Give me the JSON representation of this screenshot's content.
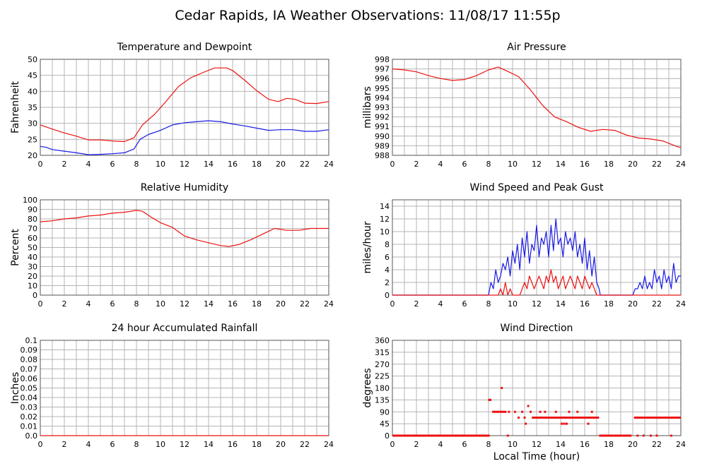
{
  "page_title": "Cedar Rapids, IA Weather Observations: 11/08/17 11:55p",
  "colors": {
    "red": "#ee1111",
    "blue": "#1a1ae6",
    "grid": "#b4b4b4",
    "frame": "#555555"
  },
  "chart_data": [
    {
      "id": "temp",
      "type": "line",
      "title": "Temperature and Dewpoint",
      "xlabel": "",
      "ylabel": "Fahrenheit",
      "xlim": [
        0,
        24
      ],
      "ylim": [
        20,
        50
      ],
      "xticks": [
        0,
        2,
        4,
        6,
        8,
        10,
        12,
        14,
        16,
        18,
        20,
        22,
        24
      ],
      "yticks": [
        20,
        25,
        30,
        35,
        40,
        45,
        50
      ],
      "grid": true,
      "series": [
        {
          "color": "red",
          "x": [
            0,
            1,
            2,
            3,
            4,
            5,
            6,
            7,
            7.8,
            8.5,
            9.5,
            10.5,
            11.5,
            12.5,
            13.5,
            14.5,
            15.5,
            16,
            17,
            18,
            19,
            19.8,
            20.5,
            21.2,
            22,
            23,
            24
          ],
          "y": [
            29.5,
            28.2,
            27,
            26,
            24.8,
            24.8,
            24.5,
            24.3,
            25.5,
            29.5,
            32.8,
            37,
            41.5,
            44.2,
            45.8,
            47.3,
            47.3,
            46.5,
            43.5,
            40.2,
            37.5,
            36.8,
            37.8,
            37.5,
            36.3,
            36.2,
            36.8
          ]
        },
        {
          "color": "blue",
          "x": [
            0,
            0.5,
            1,
            2,
            3,
            4,
            5,
            6,
            7,
            7.8,
            8.3,
            9,
            10,
            11,
            12,
            13,
            14,
            15,
            16,
            17,
            18,
            19,
            20,
            21,
            22,
            23,
            24
          ],
          "y": [
            22.8,
            22.5,
            21.8,
            21.3,
            20.8,
            20.2,
            20.3,
            20.5,
            20.8,
            22,
            25,
            26.5,
            27.8,
            29.5,
            30.2,
            30.5,
            30.8,
            30.5,
            29.8,
            29.2,
            28.5,
            27.8,
            28,
            28,
            27.5,
            27.5,
            28
          ]
        }
      ]
    },
    {
      "id": "pressure",
      "type": "line",
      "title": "Air Pressure",
      "xlabel": "",
      "ylabel": "millibars",
      "xlim": [
        0,
        24
      ],
      "ylim": [
        988,
        998
      ],
      "xticks": [
        0,
        2,
        4,
        6,
        8,
        10,
        12,
        14,
        16,
        18,
        20,
        22,
        24
      ],
      "yticks": [
        988,
        989,
        990,
        991,
        992,
        993,
        994,
        995,
        996,
        997,
        998
      ],
      "grid": true,
      "series": [
        {
          "color": "red",
          "x": [
            0,
            1,
            2,
            3,
            4,
            5,
            6,
            7,
            8,
            8.8,
            9.5,
            10.5,
            11.5,
            12.5,
            13.5,
            14.5,
            15.5,
            16.5,
            17.5,
            18.5,
            19.5,
            20.5,
            21.5,
            22.5,
            23.5,
            24
          ],
          "y": [
            997,
            996.9,
            996.7,
            996.3,
            996,
            995.8,
            995.9,
            996.3,
            996.9,
            997.2,
            996.8,
            996.2,
            994.8,
            993.2,
            992,
            991.5,
            990.9,
            990.5,
            990.7,
            990.6,
            990.1,
            989.8,
            989.7,
            989.5,
            989,
            988.8
          ]
        }
      ]
    },
    {
      "id": "humidity",
      "type": "line",
      "title": "Relative Humidity",
      "xlabel": "",
      "ylabel": "Percent",
      "xlim": [
        0,
        24
      ],
      "ylim": [
        0,
        100
      ],
      "xticks": [
        0,
        2,
        4,
        6,
        8,
        10,
        12,
        14,
        16,
        18,
        20,
        22,
        24
      ],
      "yticks": [
        0,
        10,
        20,
        30,
        40,
        50,
        60,
        70,
        80,
        90,
        100
      ],
      "grid": true,
      "series": [
        {
          "color": "red",
          "x": [
            0,
            1,
            2,
            3,
            4,
            5,
            6,
            7,
            8,
            8.5,
            9.2,
            10,
            11,
            12,
            13,
            14,
            15,
            15.7,
            16.5,
            17.5,
            18.5,
            19.5,
            20.5,
            21.5,
            22.5,
            23.5,
            24
          ],
          "y": [
            77,
            78,
            80,
            81,
            83,
            84,
            86,
            87,
            89,
            88,
            82,
            76,
            71,
            62,
            58,
            55,
            52,
            51,
            53,
            58,
            64,
            70,
            68,
            68,
            70,
            70,
            70
          ]
        }
      ]
    },
    {
      "id": "wind",
      "type": "line",
      "title": "Wind Speed and Peak Gust",
      "xlabel": "",
      "ylabel": "miles/hour",
      "xlim": [
        0,
        24
      ],
      "ylim": [
        0,
        15
      ],
      "xticks": [
        0,
        2,
        4,
        6,
        8,
        10,
        12,
        14,
        16,
        18,
        20,
        22,
        24
      ],
      "yticks": [
        0,
        2,
        4,
        6,
        8,
        10,
        12,
        14
      ],
      "grid": true,
      "series": [
        {
          "color": "blue",
          "x": [
            0,
            8,
            8.2,
            8.4,
            8.6,
            8.8,
            9,
            9.2,
            9.4,
            9.6,
            9.8,
            10,
            10.2,
            10.4,
            10.6,
            10.8,
            11,
            11.2,
            11.4,
            11.6,
            11.8,
            12,
            12.2,
            12.4,
            12.6,
            12.8,
            13,
            13.2,
            13.4,
            13.6,
            13.8,
            14,
            14.2,
            14.4,
            14.6,
            14.8,
            15,
            15.2,
            15.4,
            15.6,
            15.8,
            16,
            16.2,
            16.4,
            16.6,
            16.8,
            17,
            17.2,
            17.3,
            20,
            20.2,
            20.4,
            20.6,
            20.8,
            21,
            21.2,
            21.4,
            21.6,
            21.8,
            22,
            22.2,
            22.4,
            22.6,
            22.8,
            23,
            23.2,
            23.4,
            23.6,
            23.8,
            24
          ],
          "y": [
            0,
            0,
            2,
            1,
            4,
            2,
            3,
            5,
            4,
            6,
            3,
            7,
            5,
            8,
            4,
            9,
            6,
            10,
            5,
            8,
            7,
            11,
            6,
            9,
            8,
            10,
            6,
            11,
            7,
            12,
            8,
            9,
            6,
            10,
            8,
            9,
            7,
            10,
            6,
            8,
            5,
            9,
            4,
            7,
            3,
            6,
            2,
            1,
            0,
            0,
            1,
            1,
            2,
            1,
            3,
            1,
            2,
            1,
            4,
            2,
            3,
            1,
            4,
            2,
            3,
            1,
            5,
            2,
            3,
            3
          ]
        },
        {
          "color": "red",
          "x": [
            0,
            8.8,
            9,
            9.2,
            9.4,
            9.6,
            9.8,
            10,
            10.6,
            10.8,
            11,
            11.2,
            11.4,
            11.6,
            11.8,
            12,
            12.2,
            12.4,
            12.6,
            12.8,
            13,
            13.2,
            13.4,
            13.6,
            13.8,
            14,
            14.2,
            14.4,
            14.6,
            14.8,
            15,
            15.2,
            15.4,
            15.6,
            15.8,
            16,
            16.2,
            16.4,
            16.6,
            16.8,
            17,
            24
          ],
          "y": [
            0,
            0,
            1,
            0,
            2,
            0,
            1,
            0,
            0,
            1,
            2,
            1,
            3,
            2,
            1,
            2,
            3,
            2,
            1,
            3,
            2,
            4,
            2,
            3,
            1,
            2,
            3,
            1,
            2,
            3,
            2,
            1,
            3,
            2,
            1,
            3,
            2,
            1,
            2,
            1,
            0,
            0
          ]
        }
      ]
    },
    {
      "id": "rain",
      "type": "line",
      "title": "24 hour Accumulated Rainfall",
      "xlabel": "",
      "ylabel": "Inches",
      "xlim": [
        0,
        24
      ],
      "ylim": [
        0,
        0.1
      ],
      "xticks": [
        0,
        2,
        4,
        6,
        8,
        10,
        12,
        14,
        16,
        18,
        20,
        22,
        24
      ],
      "yticks": [
        0,
        0.01,
        0.02,
        0.03,
        0.04,
        0.05,
        0.06,
        0.07,
        0.08,
        0.09,
        0.1
      ],
      "ytick_labels": [
        "0.0",
        "0.01",
        "0.02",
        "0.03",
        "0.04",
        "0.05",
        "0.06",
        "0.07",
        "0.08",
        "0.09",
        "0.1"
      ],
      "grid": true,
      "series": [
        {
          "color": "red",
          "x": [
            0,
            24
          ],
          "y": [
            0,
            0
          ]
        }
      ]
    },
    {
      "id": "direction",
      "type": "scatter",
      "title": "Wind Direction",
      "xlabel": "Local Time (hour)",
      "ylabel": "degrees",
      "xlim": [
        0,
        24
      ],
      "ylim": [
        0,
        360
      ],
      "xticks": [
        0,
        2,
        4,
        6,
        8,
        10,
        12,
        14,
        16,
        18,
        20,
        22,
        24
      ],
      "yticks": [
        0,
        45,
        90,
        135,
        180,
        225,
        270,
        315,
        360
      ],
      "grid": true,
      "series": [
        {
          "color": "red",
          "runs": [
            {
              "x0": 0,
              "x1": 8.1,
              "y": 0
            },
            {
              "x0": 8.3,
              "x1": 9.5,
              "y": 90
            },
            {
              "x0": 11.6,
              "x1": 17.2,
              "y": 68
            },
            {
              "x0": 17.2,
              "x1": 19.9,
              "y": 0
            },
            {
              "x0": 20.1,
              "x1": 24,
              "y": 68
            }
          ],
          "points": [
            [
              8.05,
              135
            ],
            [
              8.15,
              135
            ],
            [
              9.1,
              180
            ],
            [
              9.6,
              0
            ],
            [
              9.7,
              90
            ],
            [
              10.2,
              90
            ],
            [
              10.5,
              68
            ],
            [
              10.8,
              90
            ],
            [
              11,
              68
            ],
            [
              11.1,
              45
            ],
            [
              11.3,
              112
            ],
            [
              11.5,
              90
            ],
            [
              12.3,
              90
            ],
            [
              12.7,
              90
            ],
            [
              13.6,
              90
            ],
            [
              14.1,
              45
            ],
            [
              14.3,
              45
            ],
            [
              14.5,
              45
            ],
            [
              14.7,
              90
            ],
            [
              15.4,
              90
            ],
            [
              16.3,
              45
            ],
            [
              16.6,
              90
            ],
            [
              20.4,
              0
            ],
            [
              20.9,
              0
            ],
            [
              21.5,
              0
            ],
            [
              22,
              0
            ],
            [
              23.2,
              0
            ]
          ]
        }
      ]
    }
  ]
}
